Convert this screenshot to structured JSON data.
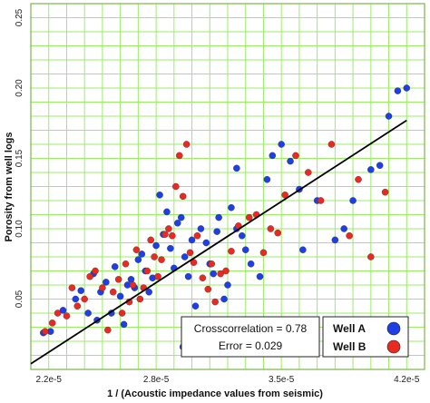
{
  "chart_data": {
    "type": "scatter",
    "title": "",
    "xlabel": "1 / (Acoustic impedance values from seismic)",
    "ylabel": "Porosity from well logs",
    "xlim": [
      2.1e-05,
      4.3e-05
    ],
    "ylim": [
      0.0,
      0.26
    ],
    "x_ticks": [
      2.2e-05,
      2.8e-05,
      3.5e-05,
      4.2e-05
    ],
    "x_tick_labels": [
      "2.2e-5",
      "2.8e-5",
      "3.5e-5",
      "4.2e-5"
    ],
    "y_ticks": [
      0.05,
      0.1,
      0.15,
      0.2,
      0.25
    ],
    "y_tick_labels": [
      "0.05",
      "0.10",
      "0.15",
      "0.20",
      "0.25"
    ],
    "grid": true,
    "grid_color": "#99ee66",
    "plot_border_color": "#7ab84a",
    "legend_position": "bottom-right",
    "stats": {
      "crosscorrelation": "Crosscorrelation = 0.78",
      "error": "Error = 0.029"
    },
    "fit_line": {
      "x": [
        2.1e-05,
        4.2e-05
      ],
      "y": [
        0.004,
        0.177
      ],
      "color": "#000000"
    },
    "series": [
      {
        "name": "Well A",
        "color": "#1f3fe6",
        "x": [
          2.17e-05,
          2.21e-05,
          2.28e-05,
          2.35e-05,
          2.38e-05,
          2.42e-05,
          2.45e-05,
          2.47e-05,
          2.49e-05,
          2.52e-05,
          2.55e-05,
          2.57e-05,
          2.6e-05,
          2.62e-05,
          2.64e-05,
          2.66e-05,
          2.68e-05,
          2.7e-05,
          2.72e-05,
          2.74e-05,
          2.76e-05,
          2.78e-05,
          2.8e-05,
          2.82e-05,
          2.84e-05,
          2.86e-05,
          2.88e-05,
          2.9e-05,
          2.92e-05,
          2.94e-05,
          2.96e-05,
          2.98e-05,
          3e-05,
          3.02e-05,
          3.05e-05,
          3.08e-05,
          3.1e-05,
          3.12e-05,
          3.15e-05,
          3.18e-05,
          3.2e-05,
          3.22e-05,
          3.25e-05,
          3.28e-05,
          3.3e-05,
          3.33e-05,
          3.38e-05,
          3.42e-05,
          3.45e-05,
          3.5e-05,
          3.55e-05,
          3.6e-05,
          3.7e-05,
          3.8e-05,
          3.85e-05,
          3.9e-05,
          4e-05,
          4.05e-05,
          4.1e-05,
          4.15e-05,
          4.2e-05,
          3.14e-05,
          2.95e-05,
          3.25e-05,
          3.62e-05
        ],
        "y": [
          0.026,
          0.027,
          0.042,
          0.05,
          0.056,
          0.04,
          0.068,
          0.035,
          0.055,
          0.062,
          0.04,
          0.073,
          0.052,
          0.032,
          0.06,
          0.064,
          0.058,
          0.078,
          0.082,
          0.07,
          0.055,
          0.065,
          0.088,
          0.124,
          0.096,
          0.112,
          0.086,
          0.072,
          0.104,
          0.108,
          0.08,
          0.066,
          0.092,
          0.045,
          0.1,
          0.09,
          0.075,
          0.068,
          0.108,
          0.05,
          0.06,
          0.115,
          0.1,
          0.095,
          0.085,
          0.075,
          0.066,
          0.135,
          0.152,
          0.16,
          0.148,
          0.128,
          0.12,
          0.092,
          0.1,
          0.12,
          0.142,
          0.145,
          0.18,
          0.198,
          0.2,
          0.098,
          0.016,
          0.143,
          0.085
        ],
        "visible_subset_note": ""
      },
      {
        "name": "Well B",
        "color": "#e82a23",
        "x": [
          2.18e-05,
          2.22e-05,
          2.25e-05,
          2.3e-05,
          2.33e-05,
          2.36e-05,
          2.4e-05,
          2.43e-05,
          2.46e-05,
          2.5e-05,
          2.53e-05,
          2.56e-05,
          2.59e-05,
          2.61e-05,
          2.63e-05,
          2.65e-05,
          2.67e-05,
          2.69e-05,
          2.71e-05,
          2.73e-05,
          2.75e-05,
          2.77e-05,
          2.79e-05,
          2.81e-05,
          2.83e-05,
          2.85e-05,
          2.87e-05,
          2.89e-05,
          2.91e-05,
          2.93e-05,
          2.95e-05,
          2.97e-05,
          2.99e-05,
          3.01e-05,
          3.03e-05,
          3.06e-05,
          3.09e-05,
          3.11e-05,
          3.13e-05,
          3.16e-05,
          3.19e-05,
          3.22e-05,
          3.26e-05,
          3.32e-05,
          3.36e-05,
          3.4e-05,
          3.44e-05,
          3.48e-05,
          3.52e-05,
          3.58e-05,
          3.65e-05,
          3.72e-05,
          3.78e-05,
          3.88e-05,
          3.93e-05,
          4e-05,
          4.08e-05
        ],
        "y": [
          0.027,
          0.033,
          0.04,
          0.038,
          0.058,
          0.045,
          0.05,
          0.066,
          0.07,
          0.058,
          0.028,
          0.055,
          0.064,
          0.04,
          0.075,
          0.048,
          0.06,
          0.085,
          0.05,
          0.058,
          0.07,
          0.092,
          0.08,
          0.066,
          0.078,
          0.096,
          0.1,
          0.095,
          0.13,
          0.152,
          0.123,
          0.16,
          0.083,
          0.076,
          0.095,
          0.065,
          0.057,
          0.075,
          0.048,
          0.068,
          0.07,
          0.084,
          0.102,
          0.108,
          0.11,
          0.083,
          0.1,
          0.097,
          0.124,
          0.152,
          0.14,
          0.12,
          0.16,
          0.095,
          0.135,
          0.08,
          0.126
        ],
        "visible_subset_note": ""
      }
    ]
  }
}
